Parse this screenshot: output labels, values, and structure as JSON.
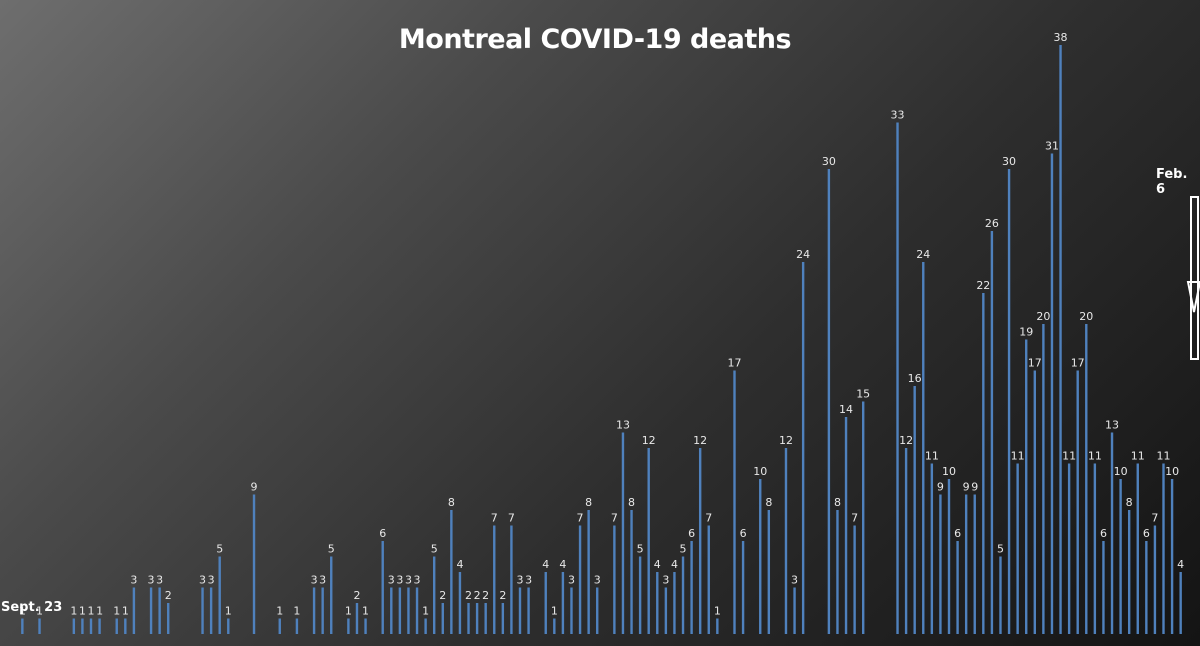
{
  "chart_data": {
    "type": "bar",
    "title": "Montreal COVID-19 deaths",
    "xlabel": "",
    "ylabel": "",
    "start_label": "Sept. 23",
    "end_label": "Feb. 6",
    "ylim": [
      0,
      40
    ],
    "grid": false,
    "bar_color": "#4f81bd",
    "values": [
      0,
      0,
      1,
      0,
      1,
      0,
      0,
      0,
      1,
      1,
      1,
      1,
      0,
      1,
      1,
      3,
      0,
      3,
      3,
      2,
      0,
      0,
      0,
      3,
      3,
      5,
      1,
      0,
      0,
      9,
      0,
      0,
      1,
      0,
      1,
      0,
      3,
      3,
      5,
      0,
      1,
      2,
      1,
      0,
      6,
      3,
      3,
      3,
      3,
      1,
      5,
      2,
      8,
      4,
      2,
      2,
      2,
      7,
      2,
      7,
      3,
      3,
      0,
      4,
      1,
      4,
      3,
      7,
      8,
      3,
      0,
      7,
      13,
      8,
      5,
      12,
      4,
      3,
      4,
      5,
      6,
      12,
      7,
      1,
      0,
      17,
      6,
      0,
      10,
      8,
      0,
      12,
      3,
      24,
      0,
      0,
      30,
      8,
      14,
      7,
      15,
      0,
      0,
      0,
      33,
      12,
      16,
      24,
      11,
      9,
      10,
      6,
      9,
      9,
      22,
      26,
      5,
      30,
      11,
      19,
      17,
      20,
      31,
      38,
      11,
      17,
      20,
      11,
      6,
      13,
      10,
      8,
      11,
      6,
      7,
      11,
      10,
      4
    ]
  }
}
